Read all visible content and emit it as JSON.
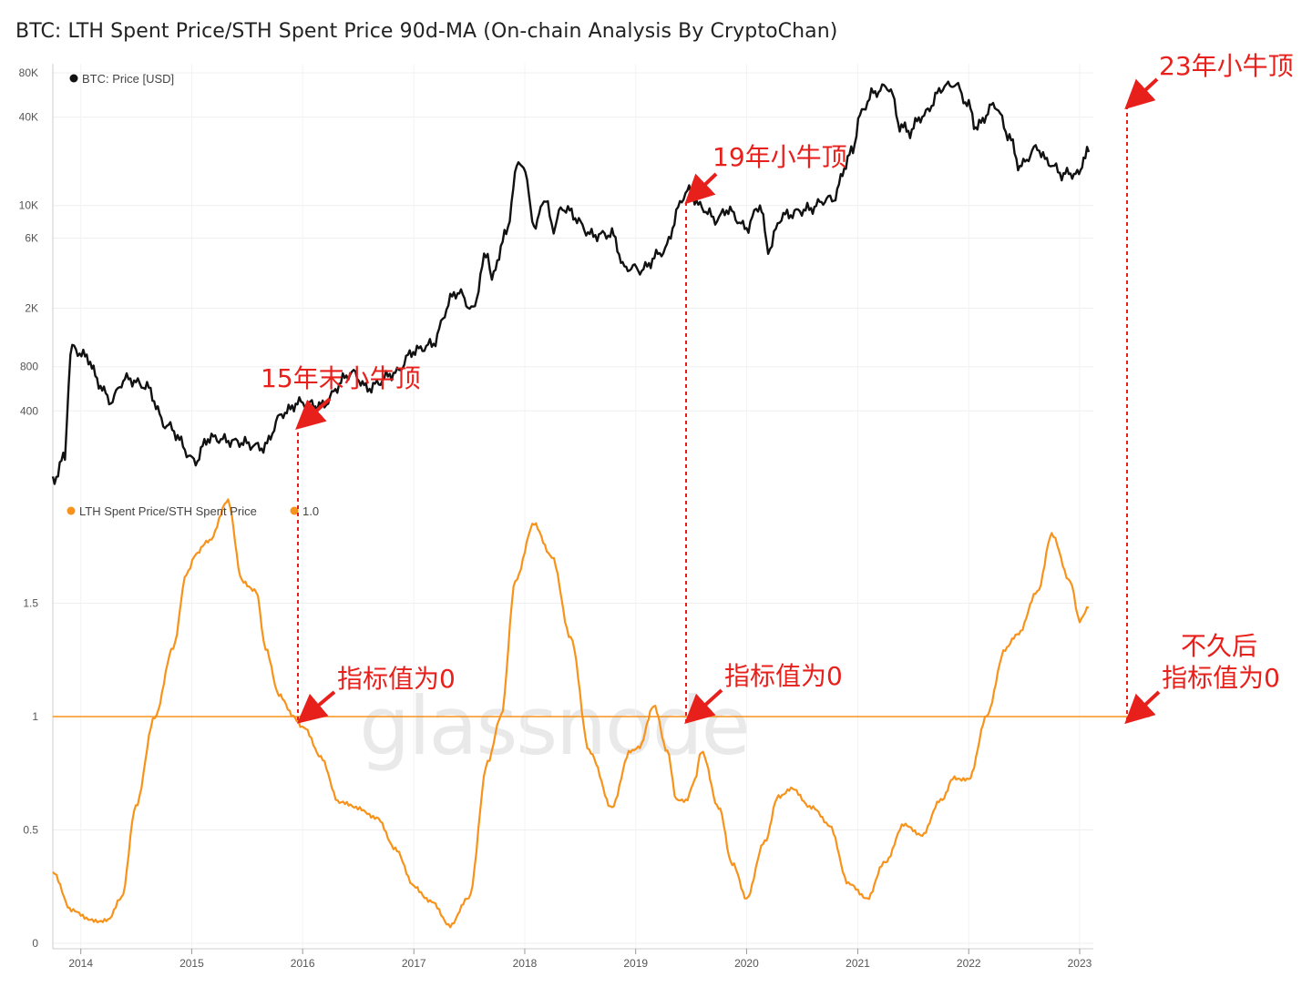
{
  "title": "BTC: LTH Spent Price/STH Spent Price 90d-MA (On-chain Analysis By CryptoChan)",
  "watermark": "glassnode",
  "colors": {
    "price": "#111111",
    "ratio": "#f7931a",
    "annotation": "#e8201c",
    "grid": "#eeeeee",
    "baseline": "#f7931a"
  },
  "chart_data": [
    {
      "type": "line",
      "title": "",
      "legend": [
        "BTC: Price [USD]"
      ],
      "yscale": "log",
      "ylim": [
        150,
        80000
      ],
      "yticks": [
        "80K",
        "40K",
        "10K",
        "6K",
        "2K",
        "800",
        "400"
      ],
      "ytick_values": [
        80000,
        40000,
        10000,
        6000,
        2000,
        800,
        400
      ],
      "series": [
        {
          "name": "BTC: Price [USD]",
          "x": [
            "2013-10-01",
            "2013-11-10",
            "2013-12-04",
            "2014-01-15",
            "2014-03-01",
            "2014-04-10",
            "2014-06-01",
            "2014-08-01",
            "2014-10-05",
            "2015-01-14",
            "2015-03-01",
            "2015-06-01",
            "2015-08-25",
            "2015-11-04",
            "2015-12-15",
            "2016-03-01",
            "2016-06-17",
            "2016-08-02",
            "2016-11-01",
            "2017-01-05",
            "2017-03-01",
            "2017-05-25",
            "2017-07-15",
            "2017-09-01",
            "2017-09-15",
            "2017-11-01",
            "2017-12-17",
            "2018-02-06",
            "2018-03-05",
            "2018-04-06",
            "2018-05-05",
            "2018-08-15",
            "2018-10-15",
            "2018-11-25",
            "2019-01-15",
            "2019-04-02",
            "2019-06-26",
            "2019-08-01",
            "2019-09-26",
            "2019-10-27",
            "2020-01-01",
            "2020-02-14",
            "2020-03-12",
            "2020-05-01",
            "2020-07-25",
            "2020-10-08",
            "2020-12-16",
            "2021-01-08",
            "2021-02-21",
            "2021-04-14",
            "2021-05-19",
            "2021-06-22",
            "2021-08-01",
            "2021-10-20",
            "2021-11-10",
            "2022-01-01",
            "2022-01-24",
            "2022-03-28",
            "2022-05-09",
            "2022-06-18",
            "2022-08-15",
            "2022-09-15",
            "2022-11-09",
            "2022-12-30",
            "2023-01-14",
            "2023-01-31"
          ],
          "values": [
            130,
            200,
            1100,
            950,
            620,
            470,
            650,
            580,
            330,
            180,
            260,
            240,
            220,
            400,
            460,
            420,
            720,
            580,
            730,
            1000,
            1100,
            2500,
            2000,
            4800,
            3200,
            6500,
            19500,
            7000,
            11000,
            6800,
            9500,
            6400,
            6500,
            3800,
            3600,
            5000,
            12900,
            10000,
            8200,
            9500,
            7200,
            10000,
            5000,
            8800,
            9700,
            10900,
            23000,
            40000,
            57000,
            64000,
            36000,
            31000,
            41000,
            65000,
            68000,
            47000,
            35000,
            47000,
            30000,
            19000,
            24000,
            19500,
            16000,
            16500,
            20800,
            23100
          ]
        }
      ]
    },
    {
      "type": "line",
      "title": "",
      "legend": [
        "LTH Spent Price/STH Spent Price",
        "1.0"
      ],
      "ylim": [
        0,
        2.0
      ],
      "yticks": [
        "1.5",
        "1",
        "0.5",
        "0"
      ],
      "ytick_values": [
        1.5,
        1.0,
        0.5,
        0.0
      ],
      "baseline": 1.0,
      "series": [
        {
          "name": "LTH Spent Price/STH Spent Price",
          "x": [
            "2013-10-01",
            "2013-12-01",
            "2014-02-01",
            "2014-04-01",
            "2014-05-15",
            "2014-07-01",
            "2014-09-01",
            "2014-11-01",
            "2014-12-15",
            "2015-01-15",
            "2015-03-01",
            "2015-05-01",
            "2015-06-15",
            "2015-08-01",
            "2015-09-01",
            "2015-10-15",
            "2015-12-01",
            "2016-01-05",
            "2016-03-01",
            "2016-05-01",
            "2016-07-01",
            "2016-09-01",
            "2016-11-01",
            "2017-01-01",
            "2017-03-01",
            "2017-05-01",
            "2017-07-01",
            "2017-09-01",
            "2017-10-15",
            "2017-12-01",
            "2018-02-01",
            "2018-04-01",
            "2018-06-01",
            "2018-08-01",
            "2018-10-15",
            "2018-12-15",
            "2019-01-15",
            "2019-03-01",
            "2019-04-15",
            "2019-05-15",
            "2019-06-15",
            "2019-07-15",
            "2019-08-05",
            "2019-10-01",
            "2019-11-15",
            "2020-01-01",
            "2020-03-01",
            "2020-04-15",
            "2020-06-01",
            "2020-08-01",
            "2020-10-01",
            "2020-12-01",
            "2021-02-01",
            "2021-04-01",
            "2021-06-01",
            "2021-08-01",
            "2021-10-01",
            "2021-11-15",
            "2022-01-01",
            "2022-03-01",
            "2022-05-01",
            "2022-06-15",
            "2022-08-15",
            "2022-10-01",
            "2022-12-01",
            "2023-01-01",
            "2023-01-31"
          ],
          "values": [
            0.31,
            0.15,
            0.1,
            0.1,
            0.2,
            0.6,
            1.0,
            1.3,
            1.63,
            1.72,
            1.78,
            1.95,
            1.6,
            1.55,
            1.3,
            1.1,
            1.0,
            0.95,
            0.82,
            0.62,
            0.6,
            0.55,
            0.42,
            0.25,
            0.18,
            0.08,
            0.2,
            0.8,
            1.0,
            1.6,
            1.85,
            1.7,
            1.35,
            0.85,
            0.6,
            0.85,
            0.87,
            1.05,
            0.85,
            0.63,
            0.63,
            0.72,
            0.85,
            0.6,
            0.35,
            0.2,
            0.45,
            0.65,
            0.68,
            0.6,
            0.52,
            0.26,
            0.2,
            0.36,
            0.52,
            0.48,
            0.63,
            0.73,
            0.72,
            1.0,
            1.3,
            1.37,
            1.55,
            1.8,
            1.6,
            1.42,
            1.48
          ]
        },
        {
          "name": "1.0",
          "values": [
            1.0
          ]
        }
      ]
    }
  ],
  "x_axis": {
    "labels": [
      "2014",
      "2015",
      "2016",
      "2017",
      "2018",
      "2019",
      "2020",
      "2021",
      "2022",
      "2023"
    ]
  },
  "annotations": {
    "top_2015": "15年末小牛顶",
    "top_2019": "19年小牛顶",
    "top_2023": "23年小牛顶",
    "zero_2016": "指标值为0",
    "zero_2019": "指标值为0",
    "soon_line1": "不久后",
    "soon_line2": "指标值为0"
  }
}
